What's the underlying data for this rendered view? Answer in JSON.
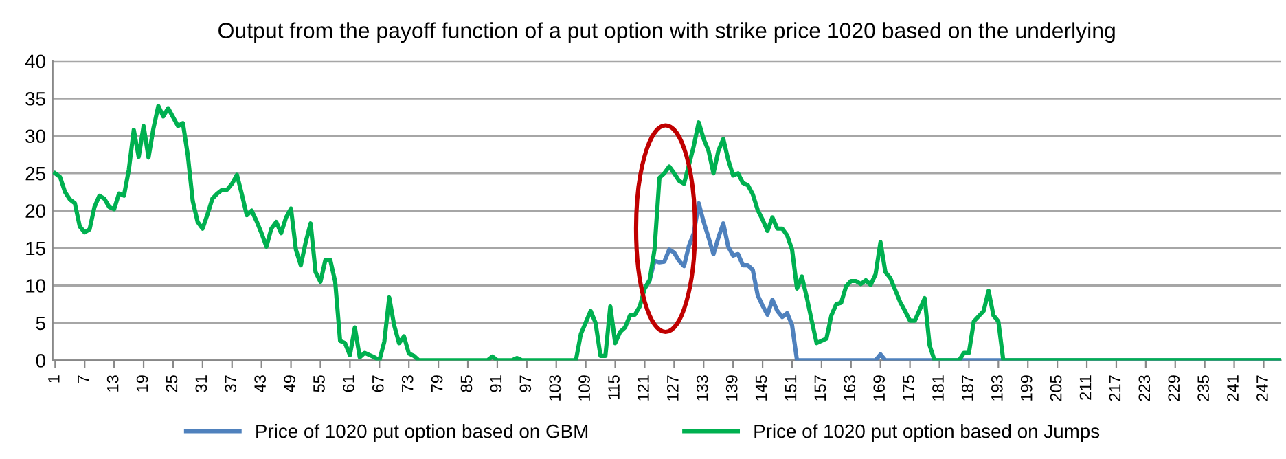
{
  "chart_data": {
    "type": "line",
    "title": "Output from the payoff function of a put option with strike price 1020 based on the underlying",
    "xlim": [
      0.5,
      250.5
    ],
    "xticks": [
      1,
      7,
      13,
      19,
      25,
      31,
      37,
      43,
      49,
      55,
      61,
      67,
      73,
      79,
      85,
      91,
      97,
      103,
      109,
      115,
      121,
      127,
      133,
      139,
      145,
      151,
      157,
      163,
      169,
      175,
      181,
      187,
      193,
      199,
      205,
      211,
      217,
      223,
      229,
      235,
      241,
      247
    ],
    "ylim": [
      0,
      40
    ],
    "yticks": [
      0,
      5,
      10,
      15,
      20,
      25,
      30,
      35,
      40
    ],
    "grid": "y",
    "legend": "bottom",
    "marker": "none",
    "line_style": "solid",
    "series": [
      {
        "name": "Price of 1020 put option based on GBM",
        "color": "#4f81bd",
        "x": [
          121,
          122,
          123,
          124,
          125,
          126,
          127,
          128,
          129,
          130,
          131,
          132,
          133,
          134,
          135,
          136,
          137,
          138,
          139,
          140,
          141,
          142,
          143,
          144,
          145,
          146,
          147,
          148,
          149,
          150,
          151,
          152,
          168,
          169,
          170,
          250
        ],
        "values": [
          9.6,
          10.7,
          13.3,
          13.1,
          13.2,
          14.8,
          14.4,
          13.3,
          12.6,
          15.3,
          17.0,
          21.0,
          18.5,
          16.4,
          14.2,
          16.4,
          18.3,
          15.2,
          14.0,
          14.2,
          12.7,
          12.7,
          12.1,
          8.7,
          7.3,
          6.1,
          8.1,
          6.6,
          5.8,
          6.3,
          4.7,
          0,
          0,
          0.8,
          0,
          0
        ]
      },
      {
        "name": "Price of 1020 put option based on Jumps",
        "color": "#00b050",
        "x": [
          1,
          2,
          3,
          4,
          5,
          6,
          7,
          8,
          9,
          10,
          11,
          12,
          13,
          14,
          15,
          16,
          17,
          18,
          19,
          20,
          21,
          22,
          23,
          24,
          25,
          26,
          27,
          28,
          29,
          30,
          31,
          32,
          33,
          34,
          35,
          36,
          37,
          38,
          39,
          40,
          41,
          42,
          43,
          44,
          45,
          46,
          47,
          48,
          49,
          50,
          51,
          52,
          53,
          54,
          55,
          56,
          57,
          58,
          59,
          60,
          61,
          62,
          63,
          64,
          65,
          66,
          67,
          68,
          69,
          70,
          71,
          72,
          73,
          74,
          75,
          89,
          90,
          91,
          94,
          95,
          96,
          107,
          108,
          110,
          111,
          112,
          113,
          114,
          115,
          116,
          117,
          118,
          119,
          120,
          121,
          122,
          123,
          124,
          125,
          126,
          127,
          128,
          129,
          130,
          131,
          132,
          133,
          134,
          135,
          136,
          137,
          138,
          139,
          140,
          141,
          142,
          143,
          144,
          145,
          146,
          147,
          148,
          149,
          150,
          151,
          152,
          153,
          154,
          155,
          156,
          157,
          158,
          159,
          160,
          161,
          162,
          163,
          164,
          165,
          166,
          167,
          168,
          169,
          170,
          171,
          173,
          174,
          175,
          176,
          178,
          179,
          180,
          185,
          186,
          187,
          188,
          190,
          191,
          192,
          193,
          194,
          250
        ],
        "values": [
          25.0,
          24.5,
          22.5,
          21.5,
          21.0,
          17.9,
          17.1,
          17.5,
          20.5,
          22.0,
          21.6,
          20.5,
          20.2,
          22.3,
          22.0,
          25.5,
          30.8,
          27.2,
          31.3,
          27.1,
          31.0,
          34.0,
          32.6,
          33.7,
          32.5,
          31.3,
          31.7,
          27.4,
          21.3,
          18.5,
          17.6,
          19.5,
          21.6,
          22.3,
          22.8,
          22.8,
          23.6,
          24.8,
          22.2,
          19.4,
          20.0,
          18.6,
          17.0,
          15.2,
          17.6,
          18.5,
          17.0,
          19.1,
          20.3,
          14.8,
          12.7,
          15.8,
          18.3,
          11.8,
          10.5,
          13.4,
          13.4,
          10.5,
          2.6,
          2.3,
          0.7,
          4.4,
          0.4,
          1.0,
          0.7,
          0.4,
          0,
          2.5,
          8.4,
          4.7,
          2.3,
          3.2,
          0.9,
          0.6,
          0,
          0,
          0.5,
          0,
          0,
          0.3,
          0,
          0,
          3.5,
          6.6,
          5.0,
          0.6,
          0.6,
          7.2,
          2.3,
          3.8,
          4.4,
          6.0,
          6.1,
          7.2,
          9.6,
          10.7,
          14.8,
          24.4,
          25.0,
          25.9,
          25.0,
          24.0,
          23.6,
          26.1,
          28.7,
          31.8,
          29.6,
          28.0,
          25.0,
          28.0,
          29.6,
          26.8,
          24.7,
          25.0,
          23.7,
          23.4,
          22.2,
          20.1,
          18.8,
          17.3,
          19.1,
          17.6,
          17.6,
          16.7,
          14.8,
          9.6,
          11.2,
          8.4,
          5.3,
          2.3,
          2.6,
          2.9,
          6.0,
          7.5,
          7.7,
          9.9,
          10.6,
          10.6,
          10.2,
          10.7,
          10.1,
          11.5,
          15.8,
          11.8,
          11.0,
          7.8,
          6.6,
          5.3,
          5.3,
          8.3,
          2.0,
          0,
          0,
          1.0,
          1.0,
          5.2,
          6.6,
          9.3,
          6.0,
          5.2,
          0,
          0
        ]
      }
    ]
  }
}
